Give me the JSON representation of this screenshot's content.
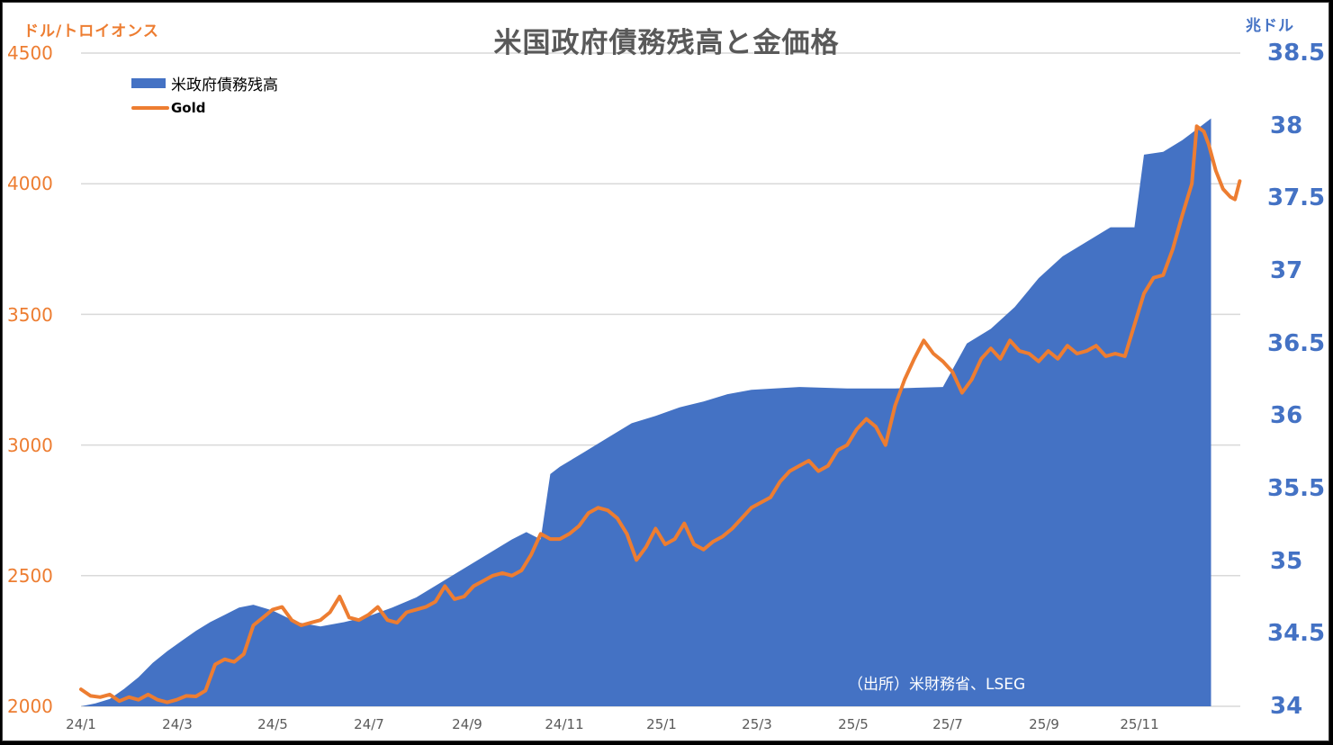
{
  "chart_data": {
    "type": "area+line",
    "title": "米国政府債務残高と金価格",
    "left_axis": {
      "unit_label": "ドル/トロイオンス",
      "ticks": [
        2000,
        2500,
        3000,
        3500,
        4000,
        4500
      ],
      "range": [
        2000,
        4500
      ],
      "color": "#ed7d31"
    },
    "right_axis": {
      "unit_label": "兆ドル",
      "ticks": [
        "34",
        "34.5",
        "35",
        "35.5",
        "36",
        "36.5",
        "37",
        "37.5",
        "38",
        "38.5"
      ],
      "range": [
        34,
        38.5
      ],
      "color": "#4472c4"
    },
    "x_axis": {
      "ticks": [
        "24/1",
        "24/3",
        "24/5",
        "24/7",
        "24/9",
        "24/11",
        "25/1",
        "25/3",
        "25/5",
        "25/7",
        "25/9",
        "25/11"
      ]
    },
    "grid": "horizontal",
    "legend": {
      "position": "top-left",
      "entries": [
        "米政府債務残高",
        "Gold"
      ]
    },
    "annotation": "（出所）米財務省、LSEG",
    "series": [
      {
        "name": "米政府債務残高",
        "type": "area",
        "axis": "right",
        "color": "#4472c4",
        "unit": "兆ドル",
        "points": [
          [
            0.0,
            34.0
          ],
          [
            0.3,
            34.02
          ],
          [
            0.6,
            34.05
          ],
          [
            0.9,
            34.12
          ],
          [
            1.2,
            34.2
          ],
          [
            1.5,
            34.3
          ],
          [
            1.8,
            34.38
          ],
          [
            2.1,
            34.45
          ],
          [
            2.4,
            34.52
          ],
          [
            2.7,
            34.58
          ],
          [
            3.0,
            34.63
          ],
          [
            3.3,
            34.68
          ],
          [
            3.6,
            34.7
          ],
          [
            4.0,
            34.66
          ],
          [
            4.5,
            34.58
          ],
          [
            5.0,
            34.55
          ],
          [
            5.5,
            34.58
          ],
          [
            6.0,
            34.62
          ],
          [
            6.5,
            34.68
          ],
          [
            7.0,
            34.75
          ],
          [
            7.5,
            34.85
          ],
          [
            8.0,
            34.95
          ],
          [
            8.5,
            35.05
          ],
          [
            9.0,
            35.15
          ],
          [
            9.3,
            35.2
          ],
          [
            9.6,
            35.15
          ],
          [
            9.8,
            35.6
          ],
          [
            10.0,
            35.65
          ],
          [
            10.5,
            35.75
          ],
          [
            11.0,
            35.85
          ],
          [
            11.5,
            35.95
          ],
          [
            12.0,
            36.0
          ],
          [
            12.5,
            36.06
          ],
          [
            13.0,
            36.1
          ],
          [
            13.5,
            36.15
          ],
          [
            14.0,
            36.18
          ],
          [
            15.0,
            36.2
          ],
          [
            16.0,
            36.19
          ],
          [
            17.0,
            36.19
          ],
          [
            18.0,
            36.2
          ],
          [
            18.5,
            36.5
          ],
          [
            19.0,
            36.6
          ],
          [
            19.5,
            36.75
          ],
          [
            20.0,
            36.95
          ],
          [
            20.5,
            37.1
          ],
          [
            21.0,
            37.2
          ],
          [
            21.5,
            37.3
          ],
          [
            22.0,
            37.3
          ],
          [
            22.2,
            37.8
          ],
          [
            22.6,
            37.82
          ],
          [
            23.0,
            37.9
          ],
          [
            23.4,
            38.0
          ],
          [
            23.6,
            38.05
          ]
        ]
      },
      {
        "name": "Gold",
        "type": "line",
        "axis": "left",
        "color": "#ed7d31",
        "unit": "ドル/トロイオンス",
        "points": [
          [
            0.0,
            2065
          ],
          [
            0.2,
            2040
          ],
          [
            0.4,
            2035
          ],
          [
            0.6,
            2045
          ],
          [
            0.8,
            2020
          ],
          [
            1.0,
            2035
          ],
          [
            1.2,
            2025
          ],
          [
            1.4,
            2045
          ],
          [
            1.6,
            2025
          ],
          [
            1.8,
            2015
          ],
          [
            2.0,
            2025
          ],
          [
            2.2,
            2040
          ],
          [
            2.4,
            2038
          ],
          [
            2.6,
            2060
          ],
          [
            2.8,
            2160
          ],
          [
            3.0,
            2180
          ],
          [
            3.2,
            2170
          ],
          [
            3.4,
            2200
          ],
          [
            3.6,
            2310
          ],
          [
            3.8,
            2340
          ],
          [
            4.0,
            2370
          ],
          [
            4.2,
            2380
          ],
          [
            4.4,
            2330
          ],
          [
            4.6,
            2310
          ],
          [
            4.8,
            2320
          ],
          [
            5.0,
            2330
          ],
          [
            5.2,
            2360
          ],
          [
            5.4,
            2420
          ],
          [
            5.6,
            2340
          ],
          [
            5.8,
            2330
          ],
          [
            6.0,
            2350
          ],
          [
            6.2,
            2380
          ],
          [
            6.4,
            2330
          ],
          [
            6.6,
            2320
          ],
          [
            6.8,
            2360
          ],
          [
            7.0,
            2370
          ],
          [
            7.2,
            2380
          ],
          [
            7.4,
            2400
          ],
          [
            7.6,
            2460
          ],
          [
            7.8,
            2410
          ],
          [
            8.0,
            2420
          ],
          [
            8.2,
            2460
          ],
          [
            8.4,
            2480
          ],
          [
            8.6,
            2500
          ],
          [
            8.8,
            2510
          ],
          [
            9.0,
            2500
          ],
          [
            9.2,
            2520
          ],
          [
            9.4,
            2580
          ],
          [
            9.6,
            2660
          ],
          [
            9.8,
            2640
          ],
          [
            10.0,
            2640
          ],
          [
            10.2,
            2660
          ],
          [
            10.4,
            2690
          ],
          [
            10.6,
            2740
          ],
          [
            10.8,
            2760
          ],
          [
            11.0,
            2750
          ],
          [
            11.2,
            2720
          ],
          [
            11.4,
            2660
          ],
          [
            11.6,
            2560
          ],
          [
            11.8,
            2610
          ],
          [
            12.0,
            2680
          ],
          [
            12.2,
            2620
          ],
          [
            12.4,
            2640
          ],
          [
            12.6,
            2700
          ],
          [
            12.8,
            2620
          ],
          [
            13.0,
            2600
          ],
          [
            13.2,
            2630
          ],
          [
            13.4,
            2650
          ],
          [
            13.6,
            2680
          ],
          [
            13.8,
            2720
          ],
          [
            14.0,
            2760
          ],
          [
            14.2,
            2780
          ],
          [
            14.4,
            2800
          ],
          [
            14.6,
            2860
          ],
          [
            14.8,
            2900
          ],
          [
            15.0,
            2920
          ],
          [
            15.2,
            2940
          ],
          [
            15.4,
            2900
          ],
          [
            15.6,
            2920
          ],
          [
            15.8,
            2980
          ],
          [
            16.0,
            3000
          ],
          [
            16.2,
            3060
          ],
          [
            16.4,
            3100
          ],
          [
            16.6,
            3070
          ],
          [
            16.8,
            3000
          ],
          [
            17.0,
            3150
          ],
          [
            17.2,
            3250
          ],
          [
            17.4,
            3330
          ],
          [
            17.6,
            3400
          ],
          [
            17.8,
            3350
          ],
          [
            18.0,
            3320
          ],
          [
            18.2,
            3280
          ],
          [
            18.4,
            3200
          ],
          [
            18.6,
            3250
          ],
          [
            18.8,
            3330
          ],
          [
            19.0,
            3370
          ],
          [
            19.2,
            3330
          ],
          [
            19.4,
            3400
          ],
          [
            19.6,
            3360
          ],
          [
            19.8,
            3350
          ],
          [
            20.0,
            3320
          ],
          [
            20.2,
            3360
          ],
          [
            20.4,
            3330
          ],
          [
            20.6,
            3380
          ],
          [
            20.8,
            3350
          ],
          [
            21.0,
            3360
          ],
          [
            21.2,
            3380
          ],
          [
            21.4,
            3340
          ],
          [
            21.6,
            3350
          ],
          [
            21.8,
            3340
          ],
          [
            22.0,
            3460
          ],
          [
            22.2,
            3580
          ],
          [
            22.4,
            3640
          ],
          [
            22.6,
            3650
          ],
          [
            22.8,
            3750
          ],
          [
            23.0,
            3880
          ],
          [
            23.2,
            4000
          ],
          [
            23.3,
            4220
          ],
          [
            23.45,
            4200
          ],
          [
            23.55,
            4150
          ],
          [
            23.7,
            4050
          ],
          [
            23.85,
            3980
          ],
          [
            24.0,
            3950
          ],
          [
            24.1,
            3940
          ],
          [
            24.2,
            4010
          ]
        ]
      }
    ]
  },
  "title": "米国政府債務残高と金価格",
  "left_unit": "ドル/トロイオンス",
  "right_unit": "兆ドル",
  "left_ticks": [
    "2000",
    "2500",
    "3000",
    "3500",
    "4000",
    "4500"
  ],
  "right_ticks": [
    "34",
    "34.5",
    "35",
    "35.5",
    "36",
    "36.5",
    "37",
    "37.5",
    "38",
    "38.5"
  ],
  "x_ticks": [
    "24/1",
    "24/3",
    "24/5",
    "24/7",
    "24/9",
    "24/11",
    "25/1",
    "25/3",
    "25/5",
    "25/7",
    "25/9",
    "25/11"
  ],
  "legend": {
    "debt": "米政府債務残高",
    "gold": "Gold"
  },
  "source": "（出所）米財務省、LSEG",
  "colors": {
    "debt": "#4472c4",
    "gold": "#ed7d31",
    "grid": "#d9d9d9"
  }
}
